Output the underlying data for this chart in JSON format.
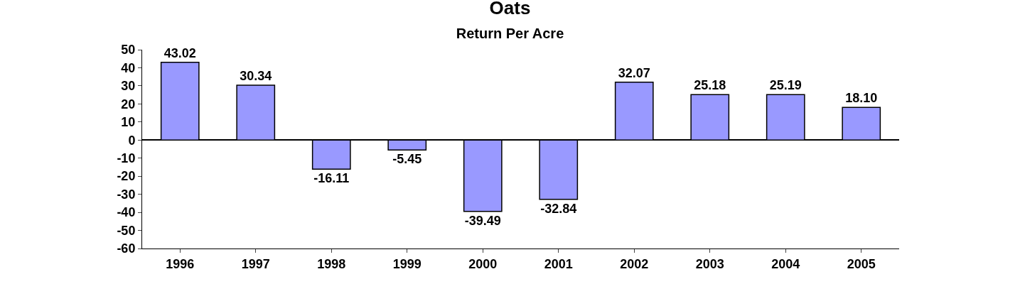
{
  "chart_data": {
    "type": "bar",
    "title": "Oats",
    "subtitle": "Return Per Acre",
    "categories": [
      "1996",
      "1997",
      "1998",
      "1999",
      "2000",
      "2001",
      "2002",
      "2003",
      "2004",
      "2005"
    ],
    "values": [
      43.02,
      30.34,
      -16.11,
      -5.45,
      -39.49,
      -32.84,
      32.07,
      25.18,
      25.19,
      18.1
    ],
    "value_labels": [
      "43.02",
      "30.34",
      "-16.11",
      "-5.45",
      "-39.49",
      "-32.84",
      "32.07",
      "25.18",
      "25.19",
      "18.10"
    ],
    "color": "#9999ff",
    "ylim": [
      -60,
      50
    ],
    "yticks": [
      -60,
      -50,
      -40,
      -30,
      -20,
      -10,
      0,
      10,
      20,
      30,
      40,
      50
    ],
    "legend": false
  }
}
